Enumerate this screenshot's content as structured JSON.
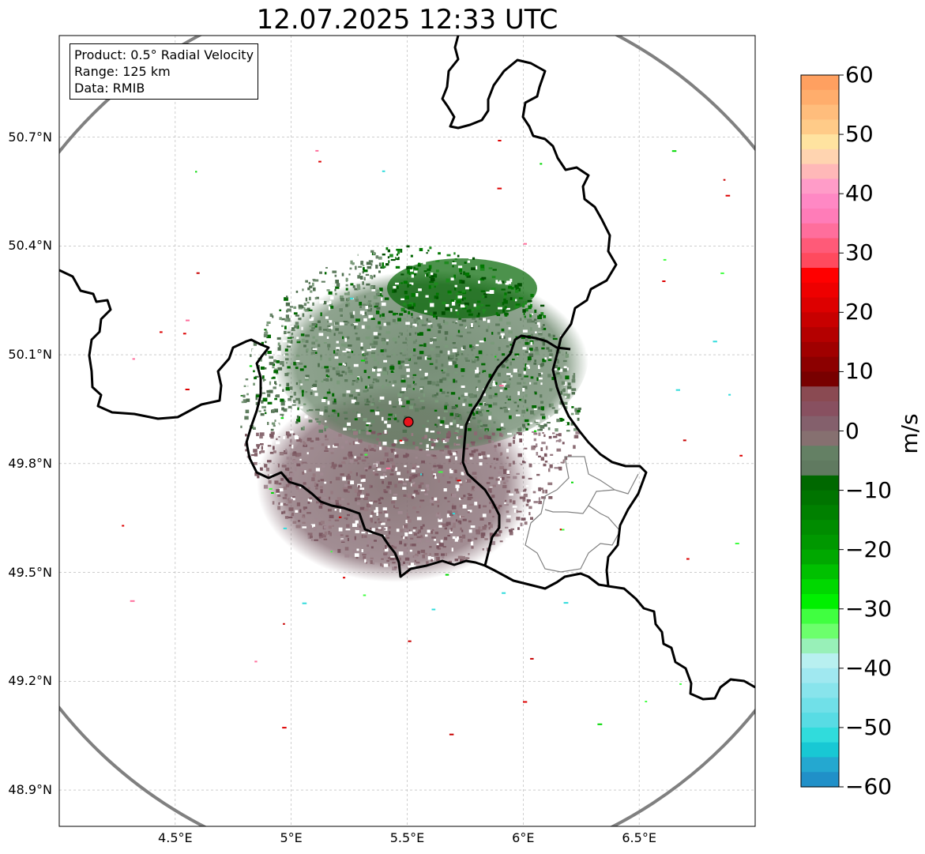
{
  "title": "12.07.2025 12:33 UTC",
  "info_box": {
    "product": "Product: 0.5° Radial Velocity",
    "range": "Range: 125 km",
    "source": "Data: RMIB"
  },
  "map": {
    "lon_range": [
      4.0,
      7.0
    ],
    "lat_range": [
      48.8,
      50.98
    ],
    "radar_site": {
      "lon": 5.505,
      "lat": 49.915,
      "color": "#e8141c"
    },
    "range_ring_color": "#808080",
    "lat_ticks": [
      {
        "value": 50.7,
        "label": "50.7°N"
      },
      {
        "value": 50.4,
        "label": "50.4°N"
      },
      {
        "value": 50.1,
        "label": "50.1°N"
      },
      {
        "value": 49.8,
        "label": "49.8°N"
      },
      {
        "value": 49.5,
        "label": "49.5°N"
      },
      {
        "value": 49.2,
        "label": "49.2°N"
      },
      {
        "value": 48.9,
        "label": "48.9°N"
      }
    ],
    "lon_ticks": [
      {
        "value": 4.5,
        "label": "4.5°E"
      },
      {
        "value": 5.0,
        "label": "5°E"
      },
      {
        "value": 5.5,
        "label": "5.5°E"
      },
      {
        "value": 6.0,
        "label": "6°E"
      },
      {
        "value": 6.5,
        "label": "6.5°E"
      }
    ],
    "gridlines": true
  },
  "colorbar": {
    "unit": "m/s",
    "min": -60,
    "max": 60,
    "ticks": [
      {
        "value": 60,
        "label": "60"
      },
      {
        "value": 50,
        "label": "50"
      },
      {
        "value": 40,
        "label": "40"
      },
      {
        "value": 30,
        "label": "30"
      },
      {
        "value": 20,
        "label": "20"
      },
      {
        "value": 10,
        "label": "10"
      },
      {
        "value": 0,
        "label": "0"
      },
      {
        "value": -10,
        "label": "−10"
      },
      {
        "value": -20,
        "label": "−20"
      },
      {
        "value": -30,
        "label": "−30"
      },
      {
        "value": -40,
        "label": "−40"
      },
      {
        "value": -50,
        "label": "−50"
      },
      {
        "value": -60,
        "label": "−60"
      }
    ],
    "colors_top_to_bottom": [
      "#ffa060",
      "#ffad6c",
      "#ffbd7c",
      "#ffcb88",
      "#ffe3a0",
      "#ffd4b0",
      "#ffb8b8",
      "#ff9cc8",
      "#ff88c4",
      "#ff7cb8",
      "#ff6e9c",
      "#ff5a78",
      "#ff4a5e",
      "#ff0000",
      "#ee0000",
      "#dd0000",
      "#c80000",
      "#b40000",
      "#a00000",
      "#8c0000",
      "#780000",
      "#8a4a52",
      "#885060",
      "#84606c",
      "#867070",
      "#648064",
      "#607a60",
      "#006800",
      "#007400",
      "#008000",
      "#008c00",
      "#009800",
      "#00a800",
      "#00c000",
      "#00d800",
      "#00f000",
      "#40ff40",
      "#6cff6c",
      "#98f0b8",
      "#b8f0f0",
      "#a0e8f0",
      "#88e4ec",
      "#70e0e8",
      "#58dce4",
      "#30dcdc",
      "#18c8d4",
      "#24a8d0",
      "#2090c8"
    ]
  }
}
